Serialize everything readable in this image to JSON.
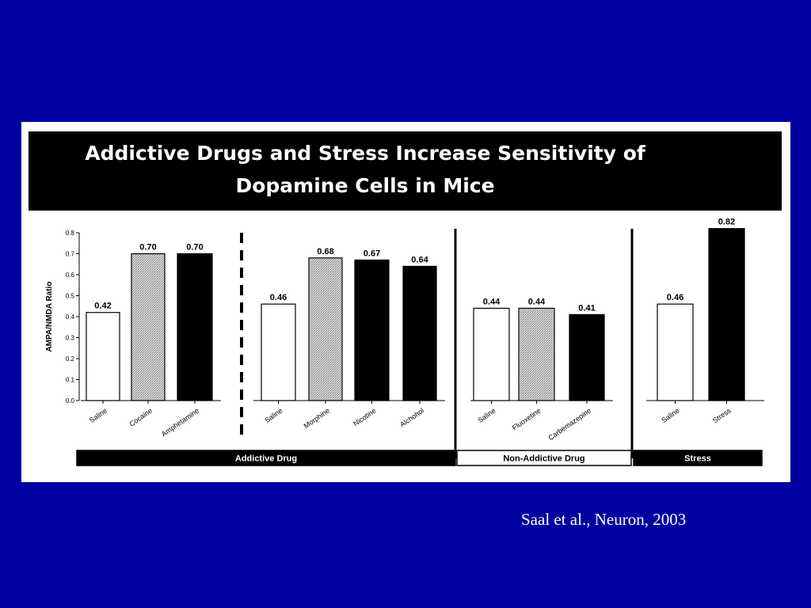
{
  "citation": "Saal et al., Neuron, 2003",
  "colors": {
    "background": "#0000a0",
    "panel": "#ffffff",
    "title_bar": "#000000",
    "bar_white": "#ffffff",
    "bar_stippled": "#c8c8c8",
    "bar_black": "#000000"
  },
  "chart_data": {
    "type": "bar",
    "title": "Addictive Drugs and Stress Increase Sensitivity of Dopamine Cells in Mice",
    "title_lines": [
      "Addictive Drugs and Stress Increase Sensitivity of",
      "Dopamine Cells in Mice"
    ],
    "ylabel": "AMPA/NMDA Ratio",
    "xlabel": "",
    "ylim": [
      0,
      0.8
    ],
    "yticks": [
      "0.0",
      "0.1",
      "0.2",
      "0.3",
      "0.4",
      "0.5",
      "0.6",
      "0.7",
      "0.8"
    ],
    "grid": false,
    "legend": "none",
    "group_labels": [
      "Addictive Drug",
      "Non-Addictive Drug",
      "Stress"
    ],
    "panels": [
      {
        "group": "Addictive Drug",
        "bars": [
          {
            "category": "Saline",
            "value": 0.42,
            "label": "0.42",
            "fill": "white"
          },
          {
            "category": "Cocaine",
            "value": 0.7,
            "label": "0.70",
            "fill": "stippled"
          },
          {
            "category": "Amphetamine",
            "value": 0.7,
            "label": "0.70",
            "fill": "black"
          }
        ]
      },
      {
        "group": "Addictive Drug",
        "bars": [
          {
            "category": "Saline",
            "value": 0.46,
            "label": "0.46",
            "fill": "white"
          },
          {
            "category": "Morphine",
            "value": 0.68,
            "label": "0.68",
            "fill": "stippled"
          },
          {
            "category": "Nicotine",
            "value": 0.67,
            "label": "0.67",
            "fill": "black"
          },
          {
            "category": "Alchohol",
            "value": 0.64,
            "label": "0.64",
            "fill": "black"
          }
        ]
      },
      {
        "group": "Non-Addictive Drug",
        "bars": [
          {
            "category": "Saline",
            "value": 0.44,
            "label": "0.44",
            "fill": "white"
          },
          {
            "category": "Fluoxetine",
            "value": 0.44,
            "label": "0.44",
            "fill": "stippled"
          },
          {
            "category": "Carbemazepine",
            "value": 0.41,
            "label": "0.41",
            "fill": "black"
          }
        ]
      },
      {
        "group": "Stress",
        "bars": [
          {
            "category": "Saline",
            "value": 0.46,
            "label": "0.46",
            "fill": "white"
          },
          {
            "category": "Stress",
            "value": 0.82,
            "label": "0.82",
            "fill": "black"
          }
        ]
      }
    ]
  }
}
